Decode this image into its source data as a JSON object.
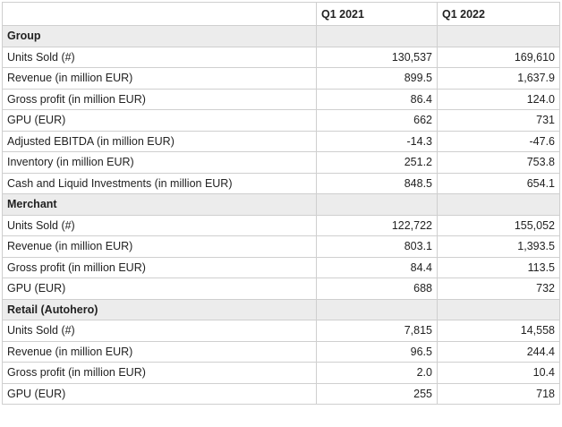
{
  "table": {
    "columns": [
      "",
      "Q1 2021",
      "Q1 2022"
    ],
    "sections": [
      {
        "title": "Group",
        "rows": [
          {
            "label": "Units Sold (#)",
            "q1_2021": "130,537",
            "q1_2022": "169,610"
          },
          {
            "label": "Revenue (in million EUR)",
            "q1_2021": "899.5",
            "q1_2022": "1,637.9"
          },
          {
            "label": "Gross profit (in million EUR)",
            "q1_2021": "86.4",
            "q1_2022": "124.0"
          },
          {
            "label": "GPU (EUR)",
            "q1_2021": "662",
            "q1_2022": "731"
          },
          {
            "label": "Adjusted EBITDA (in million EUR)",
            "q1_2021": "-14.3",
            "q1_2022": "-47.6"
          },
          {
            "label": "Inventory (in million EUR)",
            "q1_2021": "251.2",
            "q1_2022": "753.8"
          },
          {
            "label": "Cash and Liquid Investments (in million EUR)",
            "q1_2021": "848.5",
            "q1_2022": "654.1"
          }
        ]
      },
      {
        "title": "Merchant",
        "rows": [
          {
            "label": "Units Sold (#)",
            "q1_2021": "122,722",
            "q1_2022": "155,052"
          },
          {
            "label": "Revenue (in million EUR)",
            "q1_2021": "803.1",
            "q1_2022": "1,393.5"
          },
          {
            "label": "Gross profit (in million EUR)",
            "q1_2021": "84.4",
            "q1_2022": "113.5"
          },
          {
            "label": "GPU (EUR)",
            "q1_2021": "688",
            "q1_2022": "732"
          }
        ]
      },
      {
        "title": "Retail (Autohero)",
        "rows": [
          {
            "label": "Units Sold (#)",
            "q1_2021": "7,815",
            "q1_2022": "14,558"
          },
          {
            "label": "Revenue (in million EUR)",
            "q1_2021": "96.5",
            "q1_2022": "244.4"
          },
          {
            "label": "Gross profit (in million EUR)",
            "q1_2021": "2.0",
            "q1_2022": "10.4"
          },
          {
            "label": "GPU (EUR)",
            "q1_2021": "255",
            "q1_2022": "718"
          }
        ]
      }
    ]
  }
}
